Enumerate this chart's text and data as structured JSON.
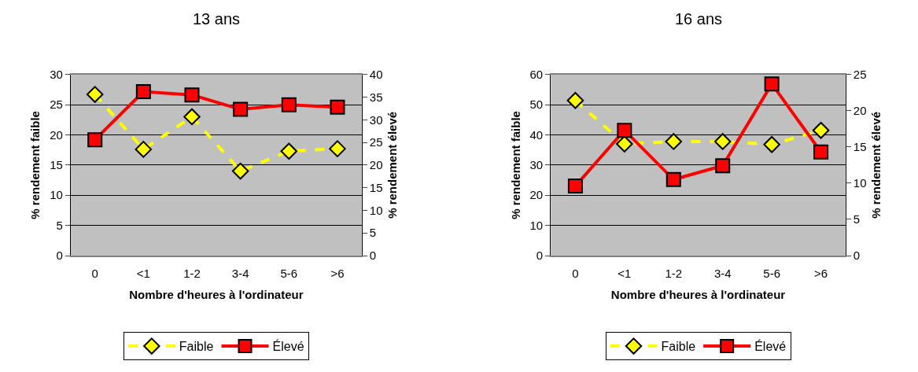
{
  "chart_data": [
    {
      "type": "line",
      "title": "13 ans",
      "xlabel": "Nombre d'heures à l'ordinateur",
      "ylabel": "% rendement faible",
      "y2label": "% rendement élevé",
      "categories": [
        "0",
        "<1",
        "1-2",
        "3-4",
        "5-6",
        ">6"
      ],
      "series": [
        {
          "name": "Faible",
          "color": "#ffff00",
          "marker": "diamond",
          "line_style": "dashed",
          "values": [
            26.7,
            17.6,
            23.0,
            14.0,
            17.3,
            17.7
          ]
        },
        {
          "name": "Élevé",
          "color": "#ff0000",
          "marker": "square",
          "line_style": "solid",
          "axis": "y2",
          "values": [
            25.6,
            36.2,
            35.5,
            32.3,
            33.3,
            32.8
          ]
        }
      ],
      "ylim": [
        0,
        30
      ],
      "yticks": [
        0,
        5,
        10,
        15,
        20,
        25,
        30
      ],
      "y2lim": [
        0,
        40
      ],
      "y2ticks": [
        0,
        5,
        10,
        15,
        20,
        25,
        30,
        35,
        40
      ],
      "grid": "y",
      "legend": "bottom"
    },
    {
      "type": "line",
      "title": "16 ans",
      "xlabel": "Nombre d'heures à l'ordinateur",
      "ylabel": "% rendement faible",
      "y2label": "% rendement élevé",
      "categories": [
        "0",
        "<1",
        "1-2",
        "3-4",
        "5-6",
        ">6"
      ],
      "series": [
        {
          "name": "Faible",
          "color": "#ffff00",
          "marker": "diamond",
          "line_style": "dashed",
          "values": [
            51.4,
            37.0,
            37.8,
            37.8,
            36.8,
            41.5
          ]
        },
        {
          "name": "Élevé",
          "color": "#ff0000",
          "marker": "square",
          "line_style": "solid",
          "axis": "y2",
          "values": [
            9.6,
            17.3,
            10.5,
            12.4,
            23.7,
            14.3
          ]
        }
      ],
      "ylim": [
        0,
        60
      ],
      "yticks": [
        0,
        10,
        20,
        30,
        40,
        50,
        60
      ],
      "y2lim": [
        0,
        25
      ],
      "y2ticks": [
        0,
        5,
        10,
        15,
        20,
        25
      ],
      "grid": "y",
      "legend": "bottom"
    }
  ]
}
